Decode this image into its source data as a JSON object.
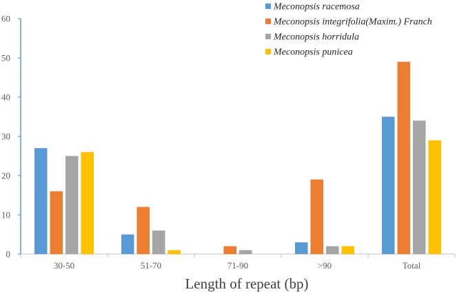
{
  "chart_data": {
    "type": "bar",
    "categories": [
      "30-50",
      "51-70",
      "71-90",
      ">90",
      "Total"
    ],
    "series": [
      {
        "name": "Meconopsis racemosa",
        "values": [
          27,
          5,
          0,
          3,
          35
        ],
        "color": "#5B9BD5"
      },
      {
        "name": "Meconopsis integrifolia(Maxim.) Franch",
        "values": [
          16,
          12,
          2,
          19,
          49
        ],
        "color": "#ED7D31"
      },
      {
        "name": "Meconopsis horridula",
        "values": [
          25,
          6,
          1,
          2,
          34
        ],
        "color": "#A5A5A5"
      },
      {
        "name": "Meconopsis punicea",
        "values": [
          26,
          1,
          0,
          2,
          29
        ],
        "color": "#FFC000"
      }
    ],
    "xlabel": "Length of repeat (bp)",
    "ylabel": "",
    "ylim": [
      0,
      60
    ],
    "yticks": [
      0,
      10,
      20,
      30,
      40,
      50,
      60
    ],
    "grid": false,
    "legend": "top-right",
    "axis_color": "#5B9BD5"
  }
}
